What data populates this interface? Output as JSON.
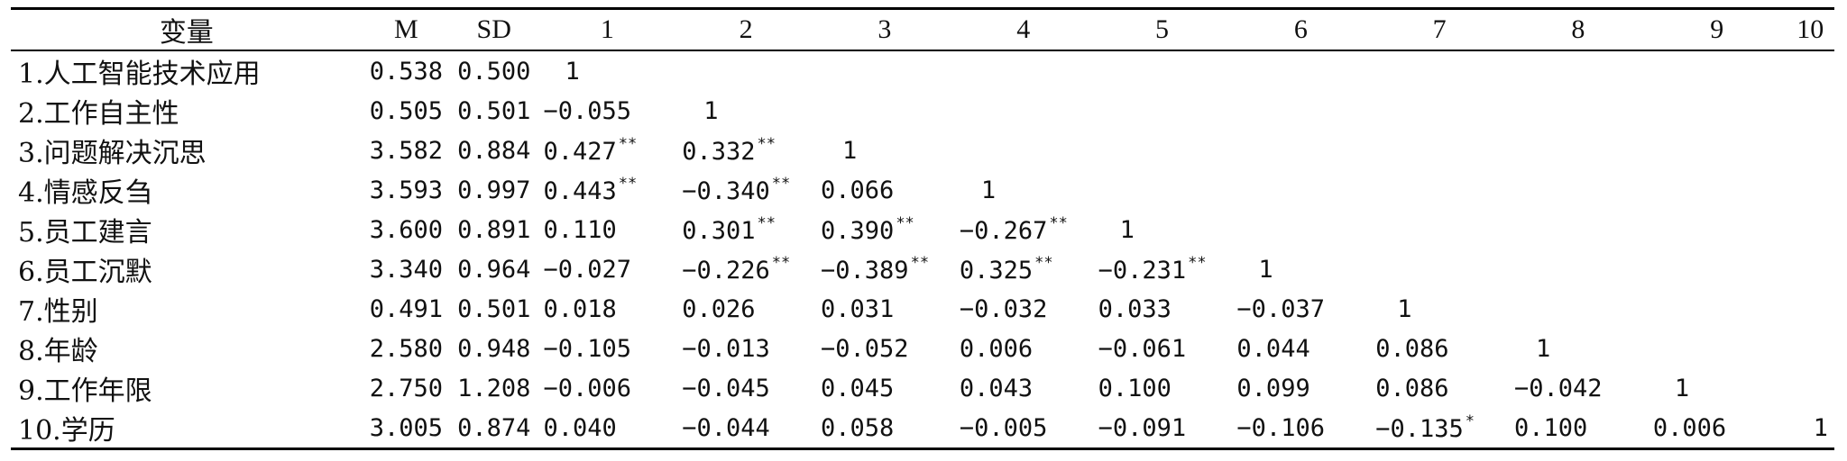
{
  "table": {
    "headers": [
      "变量",
      "M",
      "SD",
      "1",
      "2",
      "3",
      "4",
      "5",
      "6",
      "7",
      "8",
      "9",
      "10"
    ],
    "rows": [
      {
        "var": "1.人工智能技术应用",
        "m": "0.538",
        "sd": "0.500",
        "cells": [
          {
            "v": "1",
            "sig": ""
          }
        ]
      },
      {
        "var": "2.工作自主性",
        "m": "0.505",
        "sd": "0.501",
        "cells": [
          {
            "v": "−0.055",
            "sig": ""
          },
          {
            "v": "1",
            "sig": ""
          }
        ]
      },
      {
        "var": "3.问题解决沉思",
        "m": "3.582",
        "sd": "0.884",
        "cells": [
          {
            "v": "0.427",
            "sig": "**"
          },
          {
            "v": "0.332",
            "sig": "**"
          },
          {
            "v": "1",
            "sig": ""
          }
        ]
      },
      {
        "var": "4.情感反刍",
        "m": "3.593",
        "sd": "0.997",
        "cells": [
          {
            "v": "0.443",
            "sig": "**"
          },
          {
            "v": "−0.340",
            "sig": "**"
          },
          {
            "v": "0.066",
            "sig": ""
          },
          {
            "v": "1",
            "sig": ""
          }
        ]
      },
      {
        "var": "5.员工建言",
        "m": "3.600",
        "sd": "0.891",
        "cells": [
          {
            "v": "0.110",
            "sig": ""
          },
          {
            "v": "0.301",
            "sig": "**"
          },
          {
            "v": "0.390",
            "sig": "**"
          },
          {
            "v": "−0.267",
            "sig": "**"
          },
          {
            "v": "1",
            "sig": ""
          }
        ]
      },
      {
        "var": "6.员工沉默",
        "m": "3.340",
        "sd": "0.964",
        "cells": [
          {
            "v": "−0.027",
            "sig": ""
          },
          {
            "v": "−0.226",
            "sig": "**"
          },
          {
            "v": "−0.389",
            "sig": "**"
          },
          {
            "v": "0.325",
            "sig": "**"
          },
          {
            "v": "−0.231",
            "sig": "**"
          },
          {
            "v": "1",
            "sig": ""
          }
        ]
      },
      {
        "var": "7.性别",
        "m": "0.491",
        "sd": "0.501",
        "cells": [
          {
            "v": "0.018",
            "sig": ""
          },
          {
            "v": "0.026",
            "sig": ""
          },
          {
            "v": "0.031",
            "sig": ""
          },
          {
            "v": "−0.032",
            "sig": ""
          },
          {
            "v": "0.033",
            "sig": ""
          },
          {
            "v": "−0.037",
            "sig": ""
          },
          {
            "v": "1",
            "sig": ""
          }
        ]
      },
      {
        "var": "8.年龄",
        "m": "2.580",
        "sd": "0.948",
        "cells": [
          {
            "v": "−0.105",
            "sig": ""
          },
          {
            "v": "−0.013",
            "sig": ""
          },
          {
            "v": "−0.052",
            "sig": ""
          },
          {
            "v": "0.006",
            "sig": ""
          },
          {
            "v": "−0.061",
            "sig": ""
          },
          {
            "v": "0.044",
            "sig": ""
          },
          {
            "v": "0.086",
            "sig": ""
          },
          {
            "v": "1",
            "sig": ""
          }
        ]
      },
      {
        "var": "9.工作年限",
        "m": "2.750",
        "sd": "1.208",
        "cells": [
          {
            "v": "−0.006",
            "sig": ""
          },
          {
            "v": "−0.045",
            "sig": ""
          },
          {
            "v": "0.045",
            "sig": ""
          },
          {
            "v": "0.043",
            "sig": ""
          },
          {
            "v": "0.100",
            "sig": ""
          },
          {
            "v": "0.099",
            "sig": ""
          },
          {
            "v": "0.086",
            "sig": ""
          },
          {
            "v": "−0.042",
            "sig": ""
          },
          {
            "v": "1",
            "sig": ""
          }
        ]
      },
      {
        "var": "10.学历",
        "m": "3.005",
        "sd": "0.874",
        "cells": [
          {
            "v": "0.040",
            "sig": ""
          },
          {
            "v": "−0.044",
            "sig": ""
          },
          {
            "v": "0.058",
            "sig": ""
          },
          {
            "v": "−0.005",
            "sig": ""
          },
          {
            "v": "−0.091",
            "sig": ""
          },
          {
            "v": "−0.106",
            "sig": ""
          },
          {
            "v": "−0.135",
            "sig": "*"
          },
          {
            "v": "0.100",
            "sig": ""
          },
          {
            "v": "0.006",
            "sig": ""
          },
          {
            "v": "1",
            "sig": ""
          }
        ]
      }
    ]
  }
}
